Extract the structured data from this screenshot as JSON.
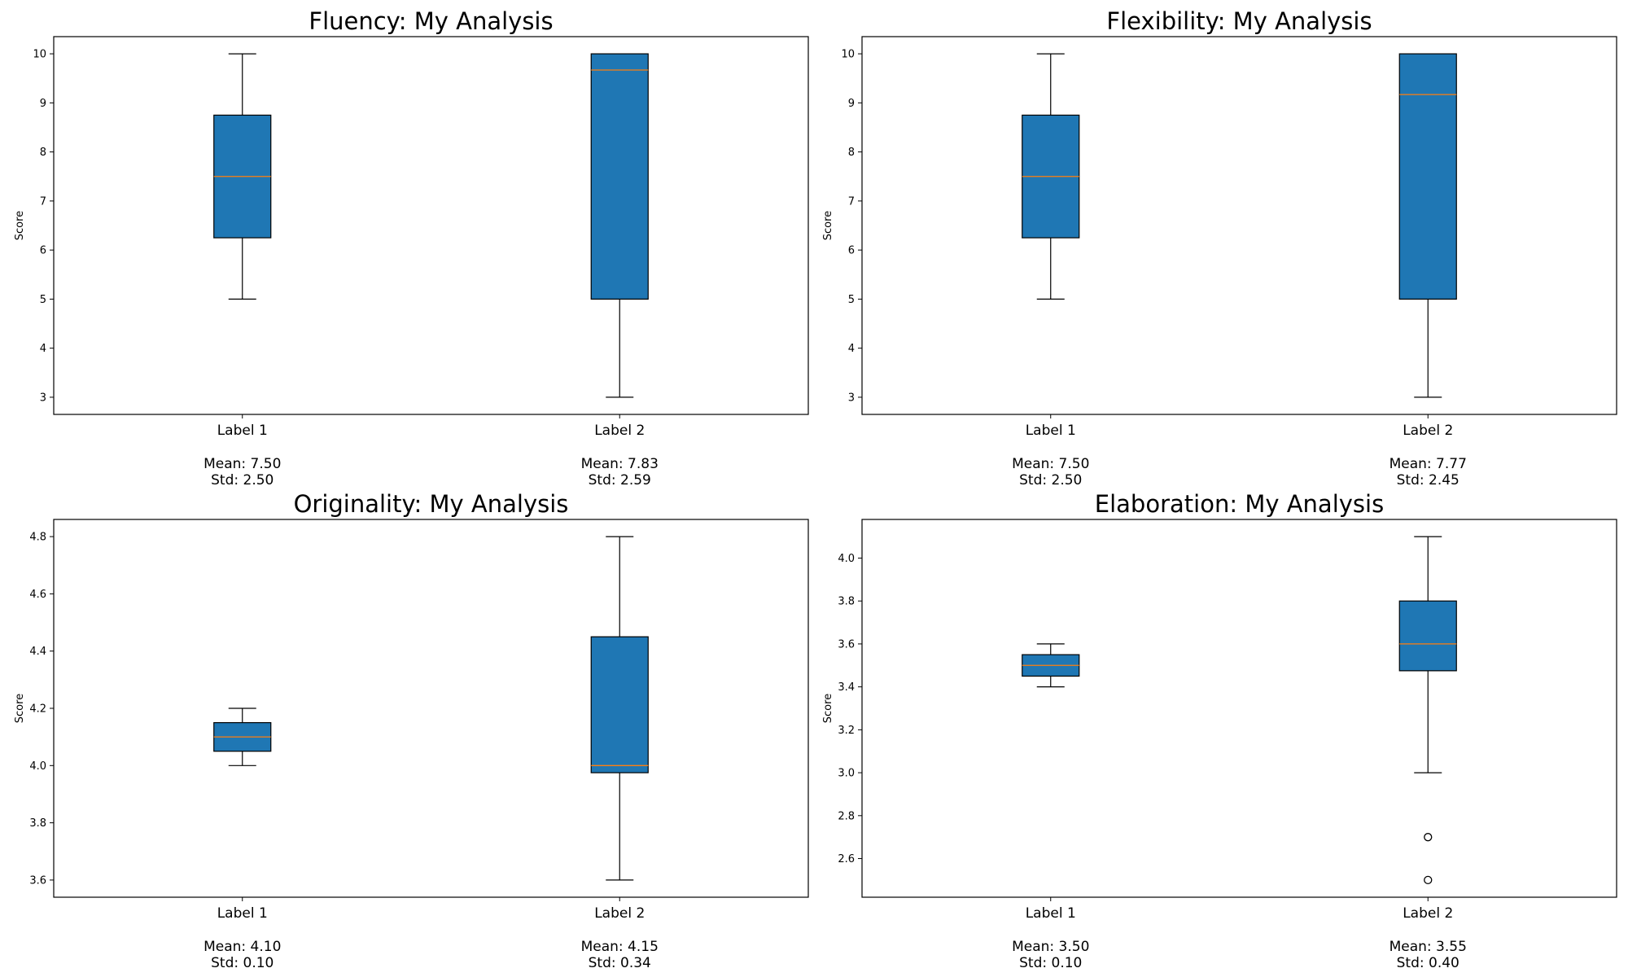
{
  "colors": {
    "box_fill": "#1f77b4",
    "median": "#ff7f0e",
    "line": "#000000",
    "background": "#ffffff"
  },
  "chart_data": [
    {
      "type": "box",
      "title": "Fluency: My Analysis",
      "ylabel": "Score",
      "xlabel": "",
      "ylim": [
        2.65,
        10.35
      ],
      "yticks": [
        "3",
        "4",
        "5",
        "6",
        "7",
        "8",
        "9",
        "10"
      ],
      "yticks_values": [
        3,
        4,
        5,
        6,
        7,
        8,
        9,
        10
      ],
      "categories": [
        "Label 1",
        "Label 2"
      ],
      "boxes": [
        {
          "whislo": 5,
          "q1": 6.25,
          "med": 7.5,
          "q3": 8.75,
          "whishi": 10,
          "fliers": [],
          "mean_label": "Mean: 7.50",
          "std_label": "Std: 2.50"
        },
        {
          "whislo": 3,
          "q1": 5,
          "med": 9.67,
          "q3": 10,
          "whishi": 10,
          "fliers": [],
          "mean_label": "Mean: 7.83",
          "std_label": "Std: 2.59"
        }
      ]
    },
    {
      "type": "box",
      "title": "Flexibility: My Analysis",
      "ylabel": "Score",
      "xlabel": "",
      "ylim": [
        2.65,
        10.35
      ],
      "yticks": [
        "3",
        "4",
        "5",
        "6",
        "7",
        "8",
        "9",
        "10"
      ],
      "yticks_values": [
        3,
        4,
        5,
        6,
        7,
        8,
        9,
        10
      ],
      "categories": [
        "Label 1",
        "Label 2"
      ],
      "boxes": [
        {
          "whislo": 5,
          "q1": 6.25,
          "med": 7.5,
          "q3": 8.75,
          "whishi": 10,
          "fliers": [],
          "mean_label": "Mean: 7.50",
          "std_label": "Std: 2.50"
        },
        {
          "whislo": 3,
          "q1": 5,
          "med": 9.17,
          "q3": 10,
          "whishi": 10,
          "fliers": [],
          "mean_label": "Mean: 7.77",
          "std_label": "Std: 2.45"
        }
      ]
    },
    {
      "type": "box",
      "title": "Originality: My Analysis",
      "ylabel": "Score",
      "xlabel": "",
      "ylim": [
        3.54,
        4.86
      ],
      "yticks": [
        "3.6",
        "3.8",
        "4.0",
        "4.2",
        "4.4",
        "4.6",
        "4.8"
      ],
      "yticks_values": [
        3.6,
        3.8,
        4.0,
        4.2,
        4.4,
        4.6,
        4.8
      ],
      "categories": [
        "Label 1",
        "Label 2"
      ],
      "boxes": [
        {
          "whislo": 4.0,
          "q1": 4.05,
          "med": 4.1,
          "q3": 4.15,
          "whishi": 4.2,
          "fliers": [],
          "mean_label": "Mean: 4.10",
          "std_label": "Std: 0.10"
        },
        {
          "whislo": 3.6,
          "q1": 3.975,
          "med": 4.0,
          "q3": 4.45,
          "whishi": 4.8,
          "fliers": [],
          "mean_label": "Mean: 4.15",
          "std_label": "Std: 0.34"
        }
      ]
    },
    {
      "type": "box",
      "title": "Elaboration: My Analysis",
      "ylabel": "Score",
      "xlabel": "",
      "ylim": [
        2.42,
        4.18
      ],
      "yticks": [
        "2.6",
        "2.8",
        "3.0",
        "3.2",
        "3.4",
        "3.6",
        "3.8",
        "4.0"
      ],
      "yticks_values": [
        2.6,
        2.8,
        3.0,
        3.2,
        3.4,
        3.6,
        3.8,
        4.0
      ],
      "categories": [
        "Label 1",
        "Label 2"
      ],
      "boxes": [
        {
          "whislo": 3.4,
          "q1": 3.45,
          "med": 3.5,
          "q3": 3.55,
          "whishi": 3.6,
          "fliers": [],
          "mean_label": "Mean: 3.50",
          "std_label": "Std: 0.10"
        },
        {
          "whislo": 3.0,
          "q1": 3.475,
          "med": 3.6,
          "q3": 3.8,
          "whishi": 4.1,
          "fliers": [
            2.7,
            2.5
          ],
          "mean_label": "Mean: 3.55",
          "std_label": "Std: 0.40"
        }
      ]
    }
  ]
}
